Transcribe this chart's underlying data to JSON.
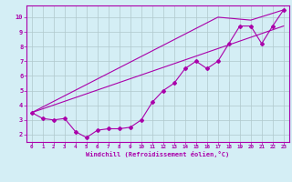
{
  "xlabel": "Windchill (Refroidissement éolien,°C)",
  "bg_color": "#d4eef5",
  "grid_color": "#b0c8cc",
  "line_color": "#aa00aa",
  "xlim": [
    -0.5,
    23.5
  ],
  "ylim": [
    1.5,
    10.8
  ],
  "xticks": [
    0,
    1,
    2,
    3,
    4,
    5,
    6,
    7,
    8,
    9,
    10,
    11,
    12,
    13,
    14,
    15,
    16,
    17,
    18,
    19,
    20,
    21,
    22,
    23
  ],
  "yticks": [
    2,
    3,
    4,
    5,
    6,
    7,
    8,
    9,
    10
  ],
  "line1_x": [
    0,
    1,
    2,
    3,
    4,
    5,
    6,
    7,
    8,
    9,
    10,
    11,
    12,
    13,
    14,
    15,
    16,
    17,
    18,
    19,
    20,
    21,
    22,
    23
  ],
  "line1_y": [
    3.5,
    3.1,
    3.0,
    3.1,
    2.2,
    1.8,
    2.3,
    2.4,
    2.4,
    2.5,
    3.0,
    4.2,
    5.0,
    5.5,
    6.5,
    7.0,
    6.5,
    7.0,
    8.2,
    9.4,
    9.4,
    8.2,
    9.4,
    10.5
  ],
  "line2_x": [
    0,
    23
  ],
  "line2_y": [
    3.5,
    9.4
  ],
  "line3_x": [
    0,
    17,
    20,
    23
  ],
  "line3_y": [
    3.5,
    10.0,
    9.8,
    10.5
  ]
}
